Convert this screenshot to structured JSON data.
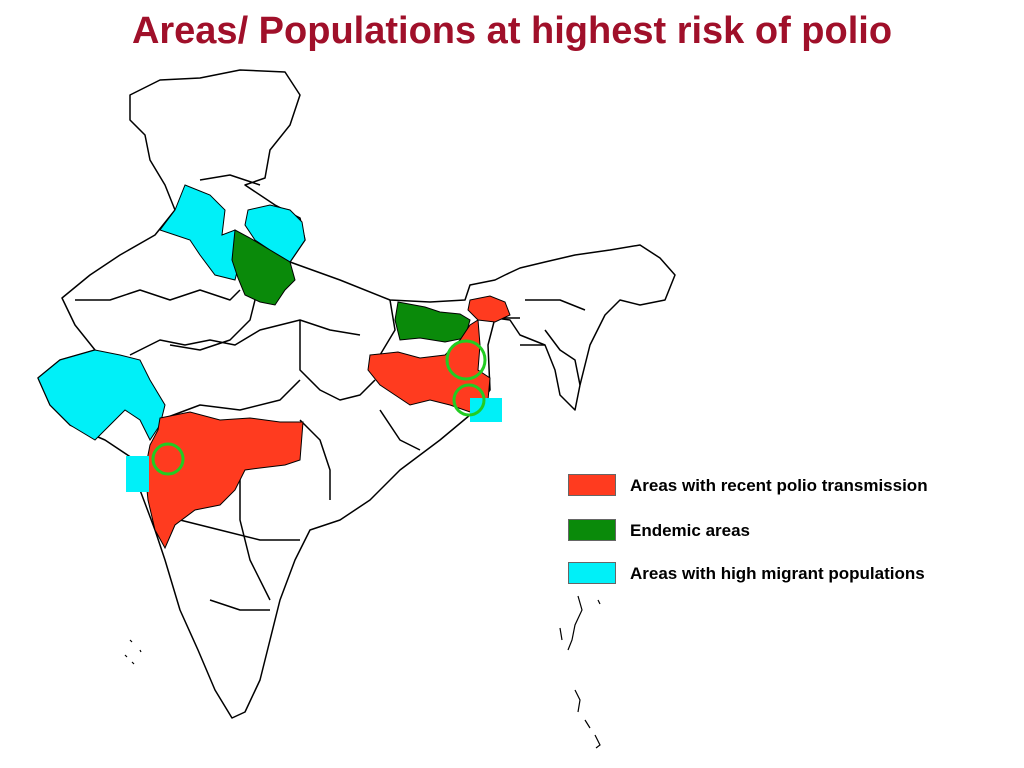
{
  "title": "Areas/ Populations at highest risk of polio",
  "colors": {
    "recent_transmission": "#ff3b1f",
    "endemic": "#0a8a0a",
    "high_migrant": "#00f0f8",
    "highlight_ring": "#22cc22",
    "title_color": "#a0102a"
  },
  "legend": [
    {
      "key": "recent_transmission",
      "label": "Areas with recent polio transmission"
    },
    {
      "key": "endemic",
      "label": "Endemic areas"
    },
    {
      "key": "high_migrant",
      "label": "Areas with high migrant populations"
    }
  ],
  "regions": {
    "recent_transmission": [
      "Maharashtra",
      "Jharkhand/West Bengal",
      "Sikkim area"
    ],
    "endemic": [
      "Western Uttar Pradesh",
      "Bihar"
    ],
    "high_migrant": [
      "Gujarat",
      "Punjab/Haryana",
      "Uttarakhand",
      "Mumbai area",
      "Kolkata area"
    ]
  }
}
